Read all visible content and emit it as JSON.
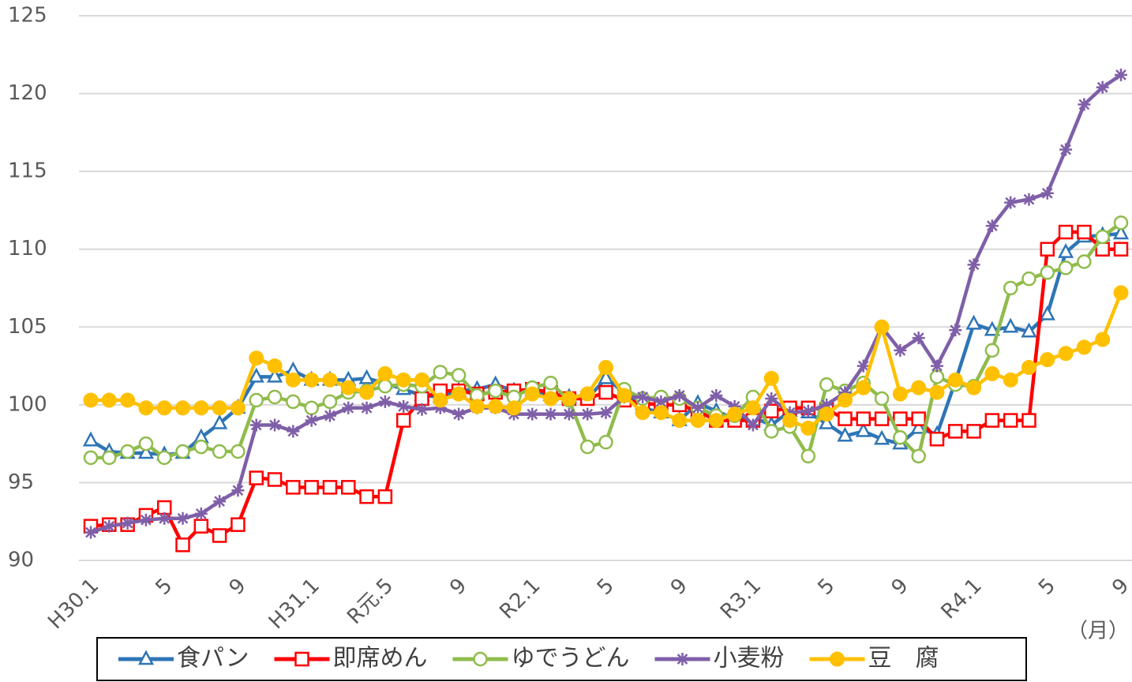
{
  "chart_data": {
    "type": "line",
    "x_label": "（月）",
    "categories": [
      "H30.1",
      null,
      null,
      null,
      "5",
      null,
      null,
      null,
      "9",
      null,
      null,
      null,
      "H31.1",
      null,
      null,
      null,
      "R元.5",
      null,
      null,
      null,
      "9",
      null,
      null,
      null,
      "R2.1",
      null,
      null,
      null,
      "5",
      null,
      null,
      null,
      "9",
      null,
      null,
      null,
      "R3.1",
      null,
      null,
      null,
      "5",
      null,
      null,
      null,
      "9",
      null,
      null,
      null,
      "R4.1",
      null,
      null,
      null,
      "5",
      null,
      null,
      null,
      "9"
    ],
    "ylim": [
      90,
      125
    ],
    "yticks": [
      90,
      95,
      100,
      105,
      110,
      115,
      120,
      125
    ],
    "grid": true,
    "legend": "bottom",
    "series": [
      {
        "name": "食パン",
        "color": "#2e75b6",
        "marker": "triangle",
        "values": [
          97.7,
          97.0,
          96.9,
          96.9,
          96.8,
          96.9,
          97.9,
          98.8,
          99.8,
          101.8,
          101.8,
          102.2,
          101.6,
          101.6,
          101.6,
          101.7,
          101.4,
          101.0,
          100.6,
          100.5,
          100.9,
          101.0,
          101.3,
          100.9,
          100.9,
          100.6,
          100.5,
          100.4,
          101.7,
          100.8,
          99.8,
          99.5,
          99.0,
          100.1,
          99.6,
          99.1,
          99.2,
          98.7,
          99.6,
          99.5,
          98.8,
          98.0,
          98.3,
          97.8,
          97.5,
          98.5,
          98.1,
          101.5,
          105.2,
          104.8,
          105.0,
          104.7,
          105.8,
          109.8,
          110.8,
          110.9,
          111.0
        ]
      },
      {
        "name": "即席めん",
        "color": "#ff0000",
        "marker": "square",
        "values": [
          92.2,
          92.3,
          92.3,
          92.9,
          93.4,
          91.0,
          92.2,
          91.6,
          92.3,
          95.3,
          95.2,
          94.7,
          94.7,
          94.7,
          94.7,
          94.1,
          94.1,
          99.0,
          100.4,
          100.9,
          100.9,
          100.7,
          100.8,
          100.9,
          101.0,
          100.8,
          100.4,
          100.4,
          100.8,
          100.3,
          100.1,
          100.0,
          100.0,
          99.6,
          99.0,
          99.0,
          99.0,
          99.6,
          99.8,
          99.8,
          99.7,
          99.1,
          99.1,
          99.1,
          99.1,
          99.1,
          97.8,
          98.3,
          98.3,
          99.0,
          99.0,
          99.0,
          110.0,
          111.1,
          111.1,
          110.0,
          110.0
        ]
      },
      {
        "name": "ゆでうどん",
        "color": "#8fbc4c",
        "marker": "circle-open",
        "values": [
          96.6,
          96.6,
          97.0,
          97.5,
          96.6,
          97.0,
          97.3,
          97.0,
          97.0,
          100.3,
          100.5,
          100.2,
          99.8,
          100.2,
          100.8,
          100.9,
          101.2,
          101.3,
          101.2,
          102.1,
          101.9,
          100.6,
          100.9,
          100.5,
          101.1,
          101.4,
          100.3,
          97.3,
          97.6,
          101.0,
          100.4,
          100.5,
          100.4,
          99.8,
          99.3,
          99.3,
          100.5,
          98.3,
          98.6,
          96.7,
          101.3,
          100.9,
          101.4,
          100.4,
          97.9,
          96.7,
          101.8,
          101.3,
          101.2,
          103.5,
          107.5,
          108.1,
          108.5,
          108.8,
          109.2,
          110.8,
          111.7
        ]
      },
      {
        "name": "小麦粉",
        "color": "#7f5fa8",
        "marker": "asterisk",
        "values": [
          91.8,
          92.2,
          92.4,
          92.6,
          92.7,
          92.7,
          93.0,
          93.8,
          94.5,
          98.7,
          98.7,
          98.3,
          99.0,
          99.3,
          99.8,
          99.8,
          100.2,
          99.9,
          99.7,
          99.8,
          99.4,
          99.8,
          99.8,
          99.4,
          99.4,
          99.4,
          99.4,
          99.4,
          99.5,
          100.5,
          100.5,
          100.2,
          100.6,
          99.8,
          100.6,
          99.9,
          98.7,
          100.4,
          99.5,
          99.6,
          100.0,
          100.8,
          102.5,
          105.0,
          103.5,
          104.3,
          102.5,
          104.8,
          109.0,
          111.5,
          113.0,
          113.2,
          113.6,
          116.4,
          119.3,
          120.4,
          121.2
        ]
      },
      {
        "name": "豆　腐",
        "color": "#ffc000",
        "marker": "circle",
        "values": [
          100.3,
          100.3,
          100.3,
          99.8,
          99.8,
          99.8,
          99.8,
          99.8,
          99.8,
          103.0,
          102.5,
          101.6,
          101.6,
          101.6,
          101.1,
          100.8,
          102.0,
          101.6,
          101.6,
          100.3,
          100.7,
          99.9,
          99.9,
          99.8,
          100.7,
          100.4,
          100.4,
          100.7,
          102.4,
          100.6,
          99.5,
          99.5,
          99.0,
          99.0,
          99.0,
          99.4,
          99.8,
          101.7,
          99.0,
          98.5,
          99.4,
          100.3,
          101.1,
          105.0,
          100.7,
          101.1,
          100.8,
          101.6,
          101.1,
          102.0,
          101.6,
          102.4,
          102.9,
          103.3,
          103.7,
          104.2,
          107.2
        ]
      }
    ]
  }
}
